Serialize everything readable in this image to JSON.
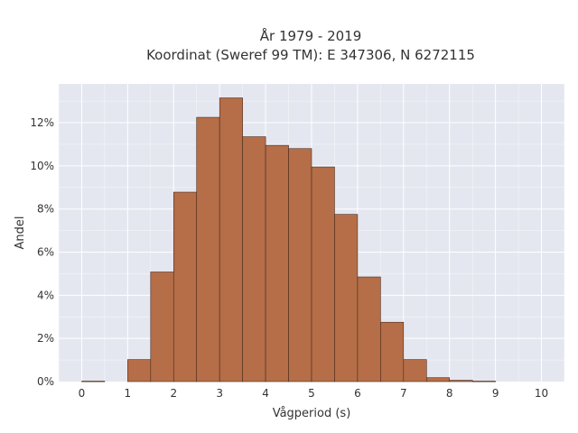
{
  "chart_data": {
    "type": "bar",
    "title_lines": [
      "År 1979 - 2019",
      "Koordinat (Sweref 99 TM): E 347306, N 6272115"
    ],
    "xlabel": "Vågperiod (s)",
    "ylabel": "Andel",
    "bin_width": 0.5,
    "bin_starts": [
      0,
      0.5,
      1,
      1.5,
      2,
      2.5,
      3,
      3.5,
      4,
      4.5,
      5,
      5.5,
      6,
      6.5,
      7,
      7.5,
      8,
      8.5,
      9,
      9.5
    ],
    "values": [
      0.02,
      0,
      1.02,
      5.08,
      8.78,
      12.25,
      13.15,
      11.35,
      10.95,
      10.8,
      9.95,
      7.75,
      4.85,
      2.75,
      1.02,
      0.18,
      0.06,
      0.02,
      0,
      0
    ],
    "x_ticks": [
      0,
      1,
      2,
      3,
      4,
      5,
      6,
      7,
      8,
      9,
      10
    ],
    "y_ticks": [
      0,
      2,
      4,
      6,
      8,
      10,
      12
    ],
    "y_tick_suffix": "%",
    "xlim": [
      -0.5,
      10.5
    ],
    "ylim": [
      0,
      13.8
    ],
    "grid": true,
    "colors": {
      "plot_background": "#e5e7f0",
      "bar_fill": "#b56e48",
      "bar_stroke": "#4a2a1a",
      "grid": "#ffffff"
    }
  }
}
